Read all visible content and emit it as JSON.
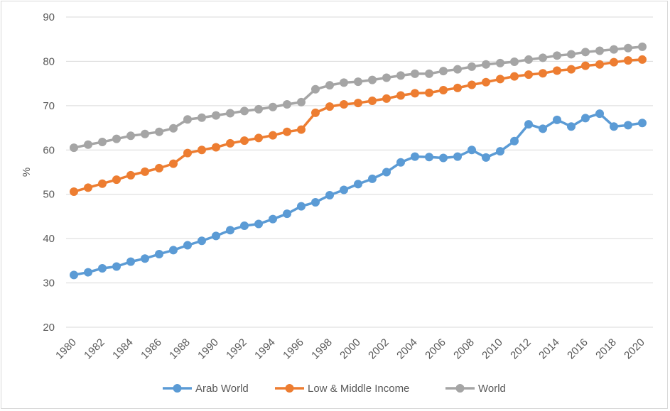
{
  "chart_data": {
    "type": "line",
    "title": "",
    "xlabel": "",
    "ylabel": "%",
    "ylim": [
      20,
      90
    ],
    "yticks": [
      20,
      30,
      40,
      50,
      60,
      70,
      80,
      90
    ],
    "grid": "horizontal",
    "legend_position": "bottom",
    "x": [
      1980,
      1981,
      1982,
      1983,
      1984,
      1985,
      1986,
      1987,
      1988,
      1989,
      1990,
      1991,
      1992,
      1993,
      1994,
      1995,
      1996,
      1997,
      1998,
      1999,
      2000,
      2001,
      2002,
      2003,
      2004,
      2005,
      2006,
      2007,
      2008,
      2009,
      2010,
      2011,
      2012,
      2013,
      2014,
      2015,
      2016,
      2017,
      2018,
      2019,
      2020
    ],
    "xtick_labels": [
      "1980",
      "1982",
      "1984",
      "1986",
      "1988",
      "1990",
      "1992",
      "1994",
      "1996",
      "1998",
      "2000",
      "2002",
      "2004",
      "2006",
      "2008",
      "2010",
      "2012",
      "2014",
      "2016",
      "2018",
      "2020"
    ],
    "series": [
      {
        "name": "Arab World",
        "color": "#5b9bd5",
        "values": [
          31.8,
          32.4,
          33.3,
          33.7,
          34.8,
          35.5,
          36.5,
          37.4,
          38.5,
          39.5,
          40.6,
          41.9,
          42.9,
          43.3,
          44.4,
          45.6,
          47.3,
          48.2,
          49.8,
          51.0,
          52.3,
          53.5,
          55.0,
          57.2,
          58.5,
          58.4,
          58.2,
          58.5,
          60.0,
          58.3,
          59.7,
          62.0,
          65.8,
          64.8,
          66.8,
          65.3,
          67.2,
          68.2,
          65.3,
          65.6,
          66.1
        ]
      },
      {
        "name": "Low & Middle Income",
        "color": "#ed7d31",
        "values": [
          50.6,
          51.5,
          52.4,
          53.3,
          54.3,
          55.1,
          55.9,
          56.9,
          59.3,
          60.0,
          60.6,
          61.5,
          62.1,
          62.7,
          63.3,
          64.1,
          64.6,
          68.4,
          69.8,
          70.3,
          70.6,
          71.1,
          71.6,
          72.3,
          72.8,
          72.9,
          73.5,
          74.0,
          74.7,
          75.3,
          76.0,
          76.6,
          77.0,
          77.3,
          77.9,
          78.2,
          79.0,
          79.3,
          79.8,
          80.2,
          80.4
        ]
      },
      {
        "name": "World",
        "color": "#a5a5a5",
        "values": [
          60.5,
          61.2,
          61.8,
          62.5,
          63.2,
          63.6,
          64.1,
          64.9,
          66.9,
          67.3,
          67.8,
          68.3,
          68.8,
          69.2,
          69.7,
          70.3,
          70.8,
          73.7,
          74.6,
          75.2,
          75.4,
          75.8,
          76.3,
          76.8,
          77.2,
          77.2,
          77.8,
          78.2,
          78.8,
          79.3,
          79.6,
          79.9,
          80.4,
          80.8,
          81.3,
          81.6,
          82.1,
          82.4,
          82.7,
          83.0,
          83.3
        ]
      }
    ]
  }
}
